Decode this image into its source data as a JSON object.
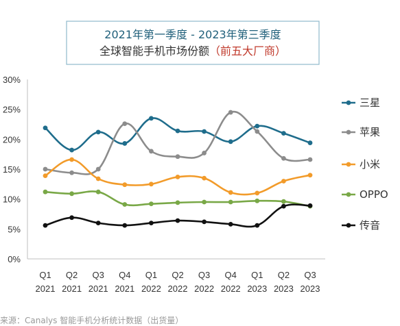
{
  "chart_data": {
    "type": "line",
    "title": "2021年第一季度 - 2023年第三季度",
    "subtitle_main": "全球智能手机市场份额",
    "subtitle_paren": "（前五大厂商）",
    "categories": [
      [
        "Q1",
        "2021"
      ],
      [
        "Q2",
        "2021"
      ],
      [
        "Q3",
        "2021"
      ],
      [
        "Q4",
        "2021"
      ],
      [
        "Q1",
        "2022"
      ],
      [
        "Q2",
        "2022"
      ],
      [
        "Q3",
        "2022"
      ],
      [
        "Q4",
        "2022"
      ],
      [
        "Q1",
        "2023"
      ],
      [
        "Q2",
        "2023"
      ],
      [
        "Q3",
        "2023"
      ]
    ],
    "y_ticks": [
      "0%",
      "5%",
      "10%",
      "15%",
      "20%",
      "25%",
      "30%"
    ],
    "ylim": [
      0,
      30
    ],
    "grid": false,
    "legend_position": "right",
    "series": [
      {
        "name": "三星",
        "color": "#1f6d8c",
        "values": [
          21.9,
          18.2,
          21.2,
          19.3,
          23.5,
          21.4,
          21.3,
          19.6,
          22.2,
          21.0,
          19.4
        ]
      },
      {
        "name": "苹果",
        "color": "#8c8c8c",
        "values": [
          15.0,
          14.4,
          15.0,
          22.6,
          18.0,
          17.1,
          17.7,
          24.5,
          21.3,
          16.8,
          16.6
        ]
      },
      {
        "name": "小米",
        "color": "#f29b2a",
        "values": [
          13.9,
          16.6,
          13.4,
          12.4,
          12.5,
          13.7,
          13.5,
          11.1,
          11.0,
          13.0,
          14.0
        ]
      },
      {
        "name": "OPPO",
        "color": "#79a847",
        "values": [
          11.2,
          10.9,
          11.2,
          9.1,
          9.2,
          9.4,
          9.5,
          9.5,
          9.7,
          9.6,
          8.8
        ]
      },
      {
        "name": "传音",
        "color": "#111111",
        "values": [
          5.6,
          6.9,
          6.0,
          5.6,
          6.0,
          6.4,
          6.2,
          5.8,
          5.6,
          8.8,
          8.9
        ]
      }
    ]
  },
  "source_text": "来源：Canalys 智能手机分析统计数据（出货量）"
}
